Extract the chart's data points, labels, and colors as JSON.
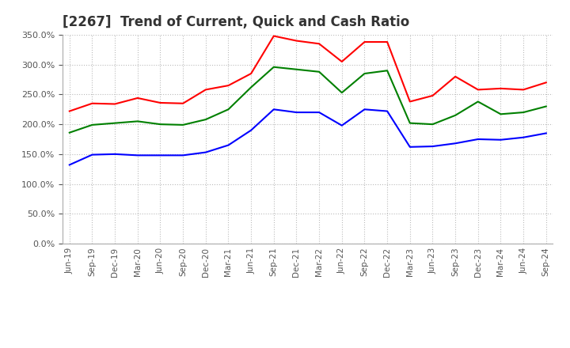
{
  "title": "[2267]  Trend of Current, Quick and Cash Ratio",
  "x_labels": [
    "Jun-19",
    "Sep-19",
    "Dec-19",
    "Mar-20",
    "Jun-20",
    "Sep-20",
    "Dec-20",
    "Mar-21",
    "Jun-21",
    "Sep-21",
    "Dec-21",
    "Mar-22",
    "Jun-22",
    "Sep-22",
    "Dec-22",
    "Mar-23",
    "Jun-23",
    "Sep-23",
    "Dec-23",
    "Mar-24",
    "Jun-24",
    "Sep-24"
  ],
  "current_ratio": [
    222,
    235,
    234,
    244,
    236,
    235,
    258,
    265,
    285,
    348,
    340,
    335,
    305,
    338,
    338,
    238,
    248,
    280,
    258,
    260,
    258,
    270
  ],
  "quick_ratio": [
    186,
    199,
    202,
    205,
    200,
    199,
    208,
    225,
    262,
    296,
    292,
    288,
    253,
    285,
    290,
    202,
    200,
    215,
    238,
    217,
    220,
    230
  ],
  "cash_ratio": [
    132,
    149,
    150,
    148,
    148,
    148,
    153,
    165,
    190,
    225,
    220,
    220,
    198,
    225,
    222,
    162,
    163,
    168,
    175,
    174,
    178,
    185
  ],
  "current_color": "#ff0000",
  "quick_color": "#008000",
  "cash_color": "#0000ff",
  "ylim": [
    0,
    350
  ],
  "yticks": [
    0,
    50,
    100,
    150,
    200,
    250,
    300,
    350
  ],
  "background_color": "#ffffff",
  "grid_color": "#cccccc",
  "title_fontsize": 12,
  "legend_fontsize": 9
}
